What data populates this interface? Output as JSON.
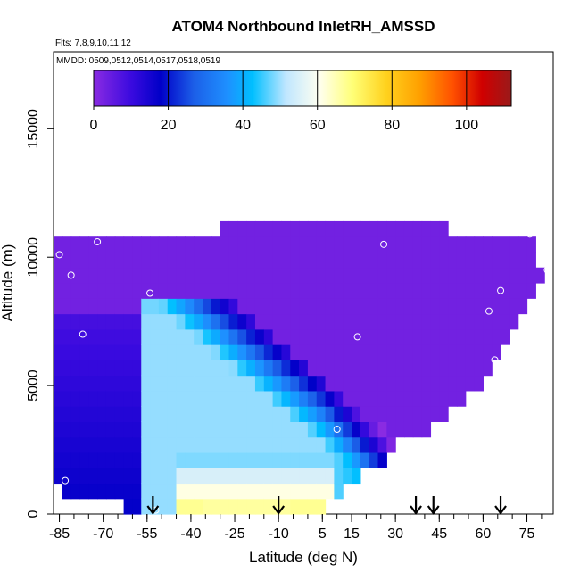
{
  "chart_data": {
    "type": "heatmap",
    "title": "ATOM4 Northbound InletRH_AMSSD",
    "subtitle_flights": "Flts: 7,8,9,10,11,12",
    "subtitle_dates": "MMDD: 0509,0512,0514,0517,0518,0519",
    "xlabel": "Latitude (deg N)",
    "ylabel": "Altitude (m)",
    "xlim": [
      -87,
      84
    ],
    "ylim": [
      0,
      18000
    ],
    "x_ticks": [
      -85,
      -70,
      -55,
      -40,
      -25,
      -10,
      5,
      15,
      30,
      45,
      60,
      75
    ],
    "y_ticks": [
      0,
      5000,
      10000,
      15000
    ],
    "colorbar": {
      "range": [
        0,
        112
      ],
      "ticks": [
        0,
        20,
        40,
        60,
        80,
        100
      ],
      "colors": [
        "#8a2be2",
        "#0000cd",
        "#1e90ff",
        "#00bfff",
        "#ffffff",
        "#ffff66",
        "#ffa500",
        "#ff4500",
        "#cc0000",
        "#8b1a1a"
      ]
    },
    "flight_arrows_lat": [
      -53,
      -10,
      37,
      43,
      66
    ],
    "markers": [
      {
        "lat": -85,
        "alt": 10100
      },
      {
        "lat": -72,
        "alt": 10600
      },
      {
        "lat": -81,
        "alt": 9300
      },
      {
        "lat": -54,
        "alt": 8600
      },
      {
        "lat": -77,
        "alt": 7000
      },
      {
        "lat": -83,
        "alt": 1300
      },
      {
        "lat": -52,
        "alt": 150
      },
      {
        "lat": 10,
        "alt": 3300
      },
      {
        "lat": 17,
        "alt": 6900
      },
      {
        "lat": 26,
        "alt": 10500
      },
      {
        "lat": 44,
        "alt": 3100
      },
      {
        "lat": 62,
        "alt": 7900
      },
      {
        "lat": 66,
        "alt": 8700
      },
      {
        "lat": 64,
        "alt": 6000
      },
      {
        "lat": 76,
        "alt": 10900
      },
      {
        "lat": 82,
        "alt": 9500
      }
    ]
  }
}
